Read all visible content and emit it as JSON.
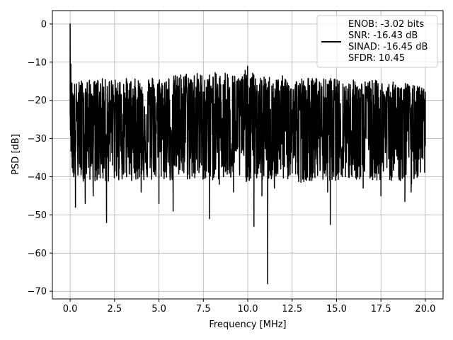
{
  "chart_data": {
    "type": "line",
    "title": "",
    "xlabel": "Frequency [MHz]",
    "ylabel": "PSD [dB]",
    "xlim": [
      -1.0,
      21.0
    ],
    "ylim": [
      -72.0,
      3.5
    ],
    "grid": true,
    "legend_position": "top-right",
    "x_ticks": [
      0.0,
      2.5,
      5.0,
      7.5,
      10.0,
      12.5,
      15.0,
      17.5,
      20.0
    ],
    "x_tick_labels": [
      "0.0",
      "2.5",
      "5.0",
      "7.5",
      "10.0",
      "12.5",
      "15.0",
      "17.5",
      "20.0"
    ],
    "y_ticks": [
      0,
      -10,
      -20,
      -30,
      -40,
      -50,
      -60,
      -70
    ],
    "y_tick_labels": [
      "0",
      "−10",
      "−20",
      "−30",
      "−40",
      "−50",
      "−60",
      "−70"
    ],
    "legend": {
      "lines": [
        "ENOB: -3.02 bits",
        "SNR: -16.43 dB",
        "SINAD: -16.45 dB",
        "SFDR: 10.45"
      ],
      "color": "#000000"
    },
    "series": [
      {
        "color": "#000000",
        "x": [
          0.0,
          0.02,
          0.04,
          0.06,
          0.08,
          0.1,
          0.15,
          0.2,
          0.25,
          0.3,
          0.5,
          0.65,
          0.85,
          1.0,
          1.3,
          1.6,
          2.0,
          2.05,
          2.5,
          3.0,
          3.5,
          4.0,
          4.5,
          5.0,
          5.4,
          5.8,
          6.2,
          6.6,
          7.0,
          7.5,
          7.85,
          8.0,
          8.4,
          8.8,
          9.2,
          9.6,
          10.0,
          10.35,
          10.45,
          10.8,
          11.12,
          11.18,
          11.5,
          12.0,
          12.5,
          13.0,
          13.5,
          14.0,
          14.5,
          14.65,
          15.0,
          15.5,
          16.0,
          16.5,
          17.0,
          17.5,
          18.0,
          18.5,
          18.85,
          19.0,
          19.2,
          19.5,
          19.8,
          20.0
        ],
        "y": [
          0.0,
          -23.0,
          -10.5,
          -28.0,
          -16.0,
          -35.0,
          -22.0,
          -40.0,
          -26.0,
          -48.0,
          -24.0,
          -38.0,
          -47.0,
          -23.0,
          -45.0,
          -30.0,
          -41.0,
          -52.0,
          -25.0,
          -39.0,
          -22.0,
          -44.0,
          -28.0,
          -47.0,
          -21.0,
          -49.0,
          -26.0,
          -40.0,
          -22.0,
          -38.0,
          -51.0,
          -25.0,
          -42.0,
          -30.0,
          -44.0,
          -24.0,
          -40.0,
          -53.0,
          -27.0,
          -45.0,
          -68.0,
          -28.0,
          -43.0,
          -24.0,
          -39.0,
          -27.0,
          -41.0,
          -30.0,
          -44.0,
          -52.5,
          -26.0,
          -40.0,
          -24.0,
          -43.0,
          -28.0,
          -45.0,
          -25.0,
          -40.0,
          -46.5,
          -28.0,
          -44.0,
          -26.0,
          -35.0,
          -32.0
        ],
        "upper": [
          0.0,
          -10.5,
          -11.0,
          -12.0,
          -13.0,
          -14.0,
          -14.5,
          -15.0,
          -15.0,
          -15.5,
          -15.0,
          -14.5,
          -15.0,
          -14.5,
          -15.0,
          -14.0,
          -14.5,
          -14.0,
          -14.5,
          -14.0,
          -14.5,
          -14.0,
          -13.5,
          -14.0,
          -13.5,
          -13.5,
          -13.0,
          -12.5,
          -12.5,
          -13.0,
          -13.0,
          -12.5,
          -13.0,
          -12.0,
          -13.0,
          -13.5,
          -11.0,
          -13.0,
          -13.5,
          -14.0,
          -13.5,
          -13.5,
          -14.0,
          -13.5,
          -14.5,
          -14.0,
          -14.0,
          -14.0,
          -14.5,
          -14.0,
          -14.5,
          -15.0,
          -14.5,
          -15.0,
          -14.5,
          -15.0,
          -15.0,
          -15.5,
          -15.0,
          -15.5,
          -16.0,
          -16.0,
          -16.5,
          -17.0
        ],
        "base": [
          -24.0,
          -24.0,
          -25.0,
          -25.0,
          -25.0,
          -25.0,
          -25.0,
          -25.0,
          -25.0,
          -25.0,
          -25.0,
          -25.0,
          -25.0,
          -25.0,
          -25.0,
          -25.0,
          -25.0,
          -25.0,
          -25.0,
          -25.0,
          -25.0,
          -25.0,
          -25.0,
          -25.0,
          -25.0,
          -25.0,
          -25.0,
          -25.0,
          -25.0,
          -25.0,
          -25.0,
          -25.0,
          -25.0,
          -25.0,
          -25.0,
          -25.0,
          -25.0,
          -25.0,
          -25.0,
          -25.0,
          -25.0,
          -25.0,
          -25.0,
          -25.0,
          -25.0,
          -25.0,
          -25.0,
          -25.0,
          -25.0,
          -25.0,
          -25.0,
          -25.0,
          -25.0,
          -25.0,
          -25.0,
          -25.0,
          -25.0,
          -25.0,
          -25.0,
          -25.0,
          -25.0,
          -25.0,
          -25.0,
          -25.0
        ],
        "lower": [
          -24.0,
          -30.0,
          -33.0,
          -36.0,
          -38.0,
          -39.0,
          -40.0,
          -41.0,
          -41.0,
          -41.0,
          -41.5,
          -41.0,
          -41.5,
          -41.0,
          -41.0,
          -41.5,
          -41.0,
          -41.5,
          -41.0,
          -41.5,
          -41.0,
          -41.0,
          -41.5,
          -41.0,
          -41.0,
          -41.5,
          -41.0,
          -41.0,
          -41.5,
          -41.0,
          -41.5,
          -41.0,
          -41.0,
          -41.5,
          -41.0,
          -41.0,
          -41.5,
          -41.0,
          -41.0,
          -41.5,
          -41.0,
          -41.0,
          -41.5,
          -41.0,
          -41.0,
          -41.5,
          -41.0,
          -41.0,
          -41.5,
          -41.0,
          -41.0,
          -41.5,
          -41.0,
          -41.0,
          -41.5,
          -41.0,
          -41.0,
          -41.5,
          -41.0,
          -41.5,
          -42.0,
          -41.5,
          -41.0,
          -40.0
        ]
      }
    ]
  }
}
